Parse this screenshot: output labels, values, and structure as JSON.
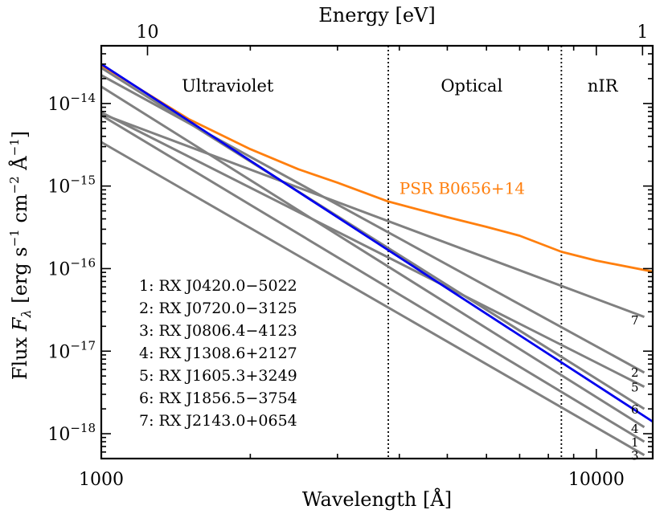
{
  "chart_data": {
    "type": "line",
    "scale": "log-log",
    "xlabel": "Wavelength [Å]",
    "ylabel_prefix": "Flux ",
    "ylabel_symbol": "F",
    "ylabel_subscript": "λ",
    "ylabel_units_a": "[erg s",
    "ylabel_units_b": " cm",
    "ylabel_units_c": " Å",
    "ylabel_units_d": "]",
    "ylabel_exp_s": "−1",
    "ylabel_exp_cm": "−2",
    "ylabel_exp_a": "−1",
    "top_xlabel": "Energy [eV]",
    "xlim": [
      1000,
      13000
    ],
    "ylim": [
      5e-19,
      5e-14
    ],
    "x_tick_labels": [
      {
        "value": 1000,
        "label": "1000"
      },
      {
        "value": 10000,
        "label": "10000"
      }
    ],
    "y_tick_labels": [
      {
        "value": 1e-14,
        "base": "10",
        "exp": "−14"
      },
      {
        "value": 1e-15,
        "base": "10",
        "exp": "−15"
      },
      {
        "value": 1e-16,
        "base": "10",
        "exp": "−16"
      },
      {
        "value": 1e-17,
        "base": "10",
        "exp": "−17"
      },
      {
        "value": 1e-18,
        "base": "10",
        "exp": "−18"
      }
    ],
    "top_tick_labels": [
      {
        "energy_ev": 10,
        "wavelength": 1239.84,
        "label": "10"
      },
      {
        "energy_ev": 1,
        "wavelength": 12398.4,
        "label": "1"
      }
    ],
    "region_boundaries": [
      3800,
      8500
    ],
    "regions": [
      {
        "label": "Ultraviolet",
        "x": 1800
      },
      {
        "label": "Optical",
        "x": 5600
      },
      {
        "label": "nIR",
        "x": 10300
      }
    ],
    "series": [
      {
        "name": "PSR B0656+14",
        "id": "psr",
        "color": "#ff7f0e",
        "points": [
          [
            1000,
            2.9e-14
          ],
          [
            1500,
            6.5e-15
          ],
          [
            2000,
            2.8e-15
          ],
          [
            2500,
            1.6e-15
          ],
          [
            3000,
            1.1e-15
          ],
          [
            3800,
            6.5e-16
          ],
          [
            5000,
            4.2e-16
          ],
          [
            6000,
            3.2e-16
          ],
          [
            7000,
            2.5e-16
          ],
          [
            8500,
            1.6e-16
          ],
          [
            10000,
            1.25e-16
          ],
          [
            13000,
            9.2e-17
          ]
        ]
      },
      {
        "name": "blackbody",
        "id": "bb",
        "color": "#0000ee",
        "points": [
          [
            1000,
            3e-14
          ],
          [
            13000,
            1.4e-18
          ]
        ]
      },
      {
        "name": "1",
        "id": "1",
        "color": "#808080",
        "points": [
          [
            1000,
            7.2e-15
          ],
          [
            12500,
            8e-19
          ]
        ]
      },
      {
        "name": "2",
        "id": "2",
        "color": "#808080",
        "points": [
          [
            1000,
            2.2e-14
          ],
          [
            12500,
            5.5e-18
          ]
        ]
      },
      {
        "name": "3",
        "id": "3",
        "color": "#808080",
        "points": [
          [
            1000,
            3.4e-15
          ],
          [
            12500,
            5.5e-19
          ]
        ]
      },
      {
        "name": "4",
        "id": "4",
        "color": "#808080",
        "points": [
          [
            1000,
            1.6e-14
          ],
          [
            12500,
            1.2e-18
          ]
        ]
      },
      {
        "name": "5",
        "id": "5",
        "color": "#808080",
        "points": [
          [
            1000,
            7.8e-15
          ],
          [
            12500,
            3.7e-18
          ]
        ]
      },
      {
        "name": "6",
        "id": "6",
        "color": "#808080",
        "points": [
          [
            1000,
            2.7e-14
          ],
          [
            12500,
            2e-18
          ]
        ]
      },
      {
        "name": "7",
        "id": "7",
        "color": "#808080",
        "points": [
          [
            1000,
            7.5e-15
          ],
          [
            12500,
            2.6e-17
          ]
        ]
      }
    ],
    "psr_label": {
      "text": "PSR B0656+14",
      "x": 4000,
      "y": 8e-16
    },
    "end_labels": [
      {
        "text": "7",
        "y": 2.4e-17
      },
      {
        "text": "2",
        "y": 5.6e-18
      },
      {
        "text": "5",
        "y": 3.7e-18
      },
      {
        "text": "6",
        "y": 2e-18
      },
      {
        "text": "4",
        "y": 1.17e-18
      },
      {
        "text": "1",
        "y": 8e-19
      },
      {
        "text": "3",
        "y": 5.5e-19
      }
    ],
    "legend": [
      "1: RX J0420.0−5022",
      "2: RX J0720.0−3125",
      "3: RX J0806.4−4123",
      "4: RX J1308.6+2127",
      "5: RX J1605.3+3249",
      "6: RX J1856.5−3754",
      "7: RX J2143.0+0654"
    ],
    "legend_position": "bottom-left"
  }
}
